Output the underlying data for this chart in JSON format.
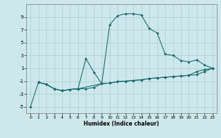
{
  "xlabel": "Humidex (Indice chaleur)",
  "xlim": [
    -0.5,
    23.5
  ],
  "ylim": [
    -6,
    11
  ],
  "yticks": [
    -5,
    -3,
    -1,
    1,
    3,
    5,
    7,
    9
  ],
  "xticks": [
    0,
    1,
    2,
    3,
    4,
    5,
    6,
    7,
    8,
    9,
    10,
    11,
    12,
    13,
    14,
    15,
    16,
    17,
    18,
    19,
    20,
    21,
    22,
    23
  ],
  "bg_color": "#cce8ec",
  "grid_color": "#aacccc",
  "line_color": "#1a6b6b",
  "series": [
    {
      "x": [
        0,
        1,
        2,
        3,
        4,
        5,
        6,
        9,
        10,
        11,
        12,
        13,
        14,
        15,
        16,
        17,
        18,
        19,
        20,
        21,
        22,
        23
      ],
      "y": [
        -5,
        -1.2,
        -1.5,
        -2.2,
        -2.5,
        -2.3,
        -2.2,
        -1.4,
        7.8,
        9.2,
        9.5,
        9.5,
        9.3,
        7.2,
        6.5,
        3.2,
        3.0,
        2.2,
        2.0,
        2.3,
        1.5,
        1.0
      ]
    },
    {
      "x": [
        1,
        2,
        3,
        4,
        5,
        6,
        7,
        8,
        9,
        10,
        11,
        12,
        13,
        14,
        15,
        16,
        17,
        18,
        19,
        20,
        21,
        22,
        23
      ],
      "y": [
        -1.2,
        -1.5,
        -2.2,
        -2.5,
        -2.3,
        -2.2,
        2.5,
        0.4,
        -1.4,
        -1.3,
        -1.1,
        -1.0,
        -0.9,
        -0.8,
        -0.6,
        -0.5,
        -0.4,
        -0.3,
        -0.2,
        -0.1,
        0.5,
        0.8,
        1.0
      ]
    },
    {
      "x": [
        1,
        2,
        3,
        4,
        5,
        6,
        7,
        8,
        9,
        10,
        11,
        12,
        13,
        14,
        15,
        16,
        17,
        18,
        19,
        20,
        21,
        22,
        23
      ],
      "y": [
        -1.2,
        -1.5,
        -2.2,
        -2.5,
        -2.3,
        -2.2,
        -2.2,
        -2.0,
        -1.4,
        -1.3,
        -1.1,
        -1.0,
        -0.9,
        -0.8,
        -0.6,
        -0.5,
        -0.4,
        -0.3,
        -0.2,
        -0.1,
        0.0,
        0.5,
        1.0
      ]
    }
  ]
}
